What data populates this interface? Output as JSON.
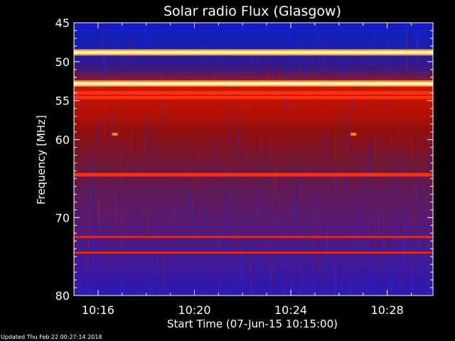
{
  "chart_data": {
    "type": "heatmap",
    "title": "Solar radio Flux (Glasgow)",
    "xlabel": "Start Time (07-Jun-15 10:15:00)",
    "ylabel": "Frequency [MHz]",
    "x_start_minutes": 15,
    "x_range_minutes": [
      15.0,
      29.9
    ],
    "x_ticks": [
      "10:16",
      "10:20",
      "10:24",
      "10:28"
    ],
    "x_tick_values": [
      16,
      20,
      24,
      28
    ],
    "y_range": [
      45,
      80
    ],
    "y_scale": "linear",
    "y_ticks": [
      45,
      50,
      55,
      60,
      70,
      80
    ],
    "colormap": "blue-purple-red-yellow-white (low to high intensity)",
    "bright_bands_mhz": [
      {
        "freq": 48.8,
        "intensity": "very high"
      },
      {
        "freq": 52.8,
        "intensity": "very high"
      },
      {
        "freq": 54.0,
        "intensity": "high"
      },
      {
        "freq": 54.6,
        "intensity": "high"
      },
      {
        "freq": 64.5,
        "intensity": "high"
      },
      {
        "freq": 72.5,
        "intensity": "medium"
      },
      {
        "freq": 74.5,
        "intensity": "medium"
      }
    ],
    "spot_features": [
      {
        "time_minutes": 16.7,
        "freq": 59.3
      },
      {
        "time_minutes": 26.6,
        "freq": 59.3
      }
    ]
  },
  "footer": "Updated Thu Feb 22 00:27:14 2018"
}
